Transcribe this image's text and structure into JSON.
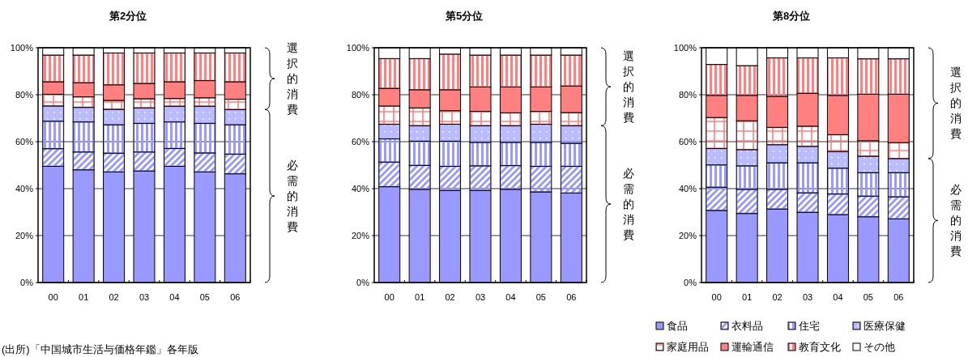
{
  "chart_data": [
    {
      "type": "bar",
      "title": "第2分位",
      "stacked": true,
      "grid": "y",
      "legend": false,
      "categories": [
        "00",
        "01",
        "02",
        "03",
        "04",
        "05",
        "06"
      ],
      "ylim": [
        0,
        100
      ],
      "yticks": [
        {
          "value": 0,
          "label": "0%"
        },
        {
          "value": 20,
          "label": "20%"
        },
        {
          "value": 40,
          "label": "40%"
        },
        {
          "value": 60,
          "label": "60%"
        },
        {
          "value": 80,
          "label": "80%"
        },
        {
          "value": 100,
          "label": "100%"
        }
      ],
      "annotations": [
        "選択的消費",
        "必需的消費",
        "(出所)「中国城市生活与価格年鑑」各年版"
      ],
      "series": [
        {
          "color": "#9999ff",
          "values": [
            49.5,
            48.0,
            47.1,
            47.5,
            49.5,
            47.1,
            46.3
          ]
        },
        {
          "color": "#9999ff",
          "values": [
            7.5,
            7.6,
            8.0,
            8.1,
            7.6,
            8.1,
            8.4
          ]
        },
        {
          "color": "#9999ff",
          "values": [
            11.7,
            12.8,
            12.1,
            12.2,
            11.3,
            12.6,
            12.5
          ]
        },
        {
          "color": "#9999ff",
          "values": [
            6.5,
            6.2,
            6.6,
            6.6,
            6.7,
            7.3,
            6.5
          ]
        },
        {
          "color": "#ff8080",
          "values": [
            5.0,
            4.5,
            3.8,
            3.9,
            3.3,
            3.6,
            4.4
          ]
        },
        {
          "color": "#ff8080",
          "values": [
            5.3,
            6.0,
            6.6,
            6.5,
            7.1,
            7.3,
            7.4
          ]
        },
        {
          "color": "#ff8080",
          "values": [
            11.4,
            11.8,
            13.6,
            13.0,
            12.3,
            11.8,
            12.3
          ]
        },
        {
          "color": "#ffffff",
          "values": [
            3.1,
            3.1,
            2.2,
            2.2,
            2.2,
            2.2,
            2.2
          ]
        }
      ]
    },
    {
      "type": "bar",
      "title": "第5分位",
      "stacked": true,
      "grid": "y",
      "legend": false,
      "categories": [
        "00",
        "01",
        "02",
        "03",
        "04",
        "05",
        "06"
      ],
      "ylim": [
        0,
        100
      ],
      "yticks": [
        {
          "value": 0,
          "label": "0%"
        },
        {
          "value": 20,
          "label": "20%"
        },
        {
          "value": 40,
          "label": "40%"
        },
        {
          "value": 60,
          "label": "60%"
        },
        {
          "value": 80,
          "label": "80%"
        },
        {
          "value": 100,
          "label": "100%"
        }
      ],
      "annotations": [
        "選択的消費",
        "必需的消費"
      ],
      "series": [
        {
          "color": "#9999ff",
          "values": [
            40.8,
            39.7,
            39.2,
            39.2,
            39.7,
            38.6,
            38.1
          ]
        },
        {
          "color": "#9999ff",
          "values": [
            10.5,
            10.2,
            10.3,
            10.5,
            10.1,
            10.9,
            11.4
          ]
        },
        {
          "color": "#9999ff",
          "values": [
            9.9,
            10.3,
            10.7,
            10.0,
            9.9,
            10.2,
            9.8
          ]
        },
        {
          "color": "#9999ff",
          "values": [
            6.2,
            6.6,
            7.2,
            7.1,
            7.1,
            7.7,
            7.5
          ]
        },
        {
          "color": "#ff8080",
          "values": [
            7.8,
            7.6,
            5.8,
            6.1,
            5.5,
            5.5,
            5.6
          ]
        },
        {
          "color": "#ff8080",
          "values": [
            7.5,
            7.7,
            8.9,
            10.4,
            11.0,
            10.4,
            11.3
          ]
        },
        {
          "color": "#ff8080",
          "values": [
            12.7,
            13.3,
            15.2,
            13.6,
            13.6,
            13.6,
            13.2
          ]
        },
        {
          "color": "#ffffff",
          "values": [
            4.6,
            4.6,
            2.7,
            3.1,
            3.1,
            3.1,
            3.1
          ]
        }
      ]
    },
    {
      "type": "bar",
      "title": "第8分位",
      "stacked": true,
      "grid": "y",
      "legend": "bottom",
      "categories": [
        "00",
        "01",
        "02",
        "03",
        "04",
        "05",
        "06"
      ],
      "ylim": [
        0,
        100
      ],
      "yticks": [
        {
          "value": 0,
          "label": "0%"
        },
        {
          "value": 20,
          "label": "20%"
        },
        {
          "value": 40,
          "label": "40%"
        },
        {
          "value": 60,
          "label": "60%"
        },
        {
          "value": 80,
          "label": "80%"
        },
        {
          "value": 100,
          "label": "100%"
        }
      ],
      "annotations": [
        "選択的消費",
        "必需的消費"
      ],
      "series": [
        {
          "name": "食品",
          "color": "#9999ff",
          "values": [
            30.7,
            29.4,
            31.3,
            29.9,
            28.9,
            28.0,
            27.1
          ]
        },
        {
          "name": "衣料品",
          "color": "#9999ff",
          "values": [
            9.9,
            10.3,
            8.4,
            8.3,
            8.8,
            8.8,
            9.4
          ]
        },
        {
          "name": "住宅",
          "color": "#9999ff",
          "values": [
            9.5,
            10.0,
            11.3,
            12.8,
            11.0,
            10.0,
            10.3
          ]
        },
        {
          "name": "医療保健",
          "color": "#9999ff",
          "values": [
            7.0,
            6.9,
            7.7,
            7.0,
            7.1,
            7.0,
            6.0
          ]
        },
        {
          "name": "家庭用品",
          "color": "#ff8080",
          "values": [
            13.2,
            12.3,
            7.4,
            8.6,
            7.2,
            6.6,
            6.8
          ]
        },
        {
          "name": "運輸通信",
          "color": "#ff8080",
          "values": [
            9.4,
            10.8,
            13.2,
            14.0,
            16.7,
            19.8,
            20.6
          ]
        },
        {
          "name": "教育文化",
          "color": "#ff8080",
          "values": [
            13.2,
            12.7,
            16.4,
            15.1,
            16.0,
            15.1,
            15.1
          ]
        },
        {
          "name": "その他",
          "color": "#ffffff",
          "values": [
            7.1,
            7.6,
            4.3,
            4.3,
            4.3,
            4.7,
            4.7
          ]
        }
      ]
    }
  ]
}
